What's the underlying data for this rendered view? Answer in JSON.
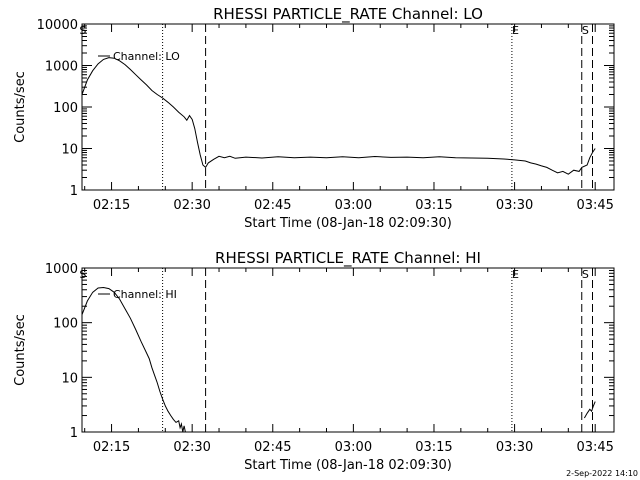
{
  "chart_data": [
    {
      "type": "line",
      "title": "RHESSI PARTICLE_RATE Channel: LO",
      "xlabel": "Start Time (08-Jan-18 02:09:30)",
      "ylabel": "Counts/sec",
      "x_ticks": [
        "02:15",
        "02:30",
        "02:45",
        "03:00",
        "03:15",
        "03:30",
        "03:45"
      ],
      "y_ticks": [
        "1",
        "10",
        "100",
        "1000",
        "10000"
      ],
      "y_scale": "log",
      "ylim": [
        1,
        10000
      ],
      "xlim": [
        "02:09:30",
        "03:48:30"
      ],
      "legend": "Channel: LO",
      "vlines": {
        "dotted": [
          "02:24:30",
          "03:29:30"
        ],
        "dashed": [
          "02:32:30",
          "03:42:30",
          "03:44:30"
        ]
      },
      "markers": [
        {
          "label": "S",
          "x": "02:09:40"
        },
        {
          "label": "E",
          "x": "03:30:10"
        },
        {
          "label": "S",
          "x": "03:43:10"
        }
      ],
      "series": [
        {
          "name": "Channel: LO",
          "segments": [
            [
              [
                "02:09:30",
                200
              ],
              [
                "02:10:30",
                450
              ],
              [
                "02:11:30",
                750
              ],
              [
                "02:12:30",
                1100
              ],
              [
                "02:13:30",
                1400
              ],
              [
                "02:14:30",
                1550
              ],
              [
                "02:15:30",
                1500
              ],
              [
                "02:16:30",
                1300
              ],
              [
                "02:17:30",
                1050
              ],
              [
                "02:18:30",
                800
              ],
              [
                "02:19:30",
                600
              ],
              [
                "02:20:30",
                450
              ],
              [
                "02:21:30",
                340
              ],
              [
                "02:22:30",
                250
              ],
              [
                "02:23:30",
                200
              ],
              [
                "02:24:30",
                165
              ],
              [
                "02:25:30",
                130
              ],
              [
                "02:26:30",
                100
              ],
              [
                "02:27:30",
                75
              ],
              [
                "02:28:30",
                58
              ],
              [
                "02:29:00",
                48
              ],
              [
                "02:29:30",
                62
              ],
              [
                "02:30:00",
                50
              ],
              [
                "02:30:30",
                30
              ],
              [
                "02:31:00",
                14
              ],
              [
                "02:31:30",
                7
              ],
              [
                "02:32:00",
                4
              ],
              [
                "02:32:30",
                3.5
              ],
              [
                "02:33:00",
                4.5
              ],
              [
                "02:34:00",
                5.5
              ],
              [
                "02:35:00",
                6.5
              ],
              [
                "02:36:00",
                6
              ],
              [
                "02:37:00",
                6.5
              ],
              [
                "02:38:00",
                5.8
              ],
              [
                "02:40:00",
                6.2
              ],
              [
                "02:43:00",
                5.9
              ],
              [
                "02:46:00",
                6.3
              ],
              [
                "02:49:00",
                6
              ],
              [
                "02:52:00",
                6.2
              ],
              [
                "02:55:00",
                6
              ],
              [
                "02:58:00",
                6.3
              ],
              [
                "03:01:00",
                6
              ],
              [
                "03:04:00",
                6.4
              ],
              [
                "03:07:00",
                6.1
              ],
              [
                "03:10:00",
                6.2
              ],
              [
                "03:13:00",
                6
              ],
              [
                "03:16:00",
                6.3
              ],
              [
                "03:19:00",
                6
              ],
              [
                "03:22:00",
                5.9
              ],
              [
                "03:25:00",
                5.8
              ],
              [
                "03:28:00",
                5.6
              ],
              [
                "03:30:00",
                5.3
              ],
              [
                "03:32:00",
                5
              ],
              [
                "03:33:00",
                4.5
              ],
              [
                "03:34:00",
                4.2
              ],
              [
                "03:35:00",
                3.8
              ],
              [
                "03:36:00",
                3.5
              ],
              [
                "03:37:00",
                3
              ],
              [
                "03:38:00",
                2.6
              ],
              [
                "03:39:00",
                2.8
              ],
              [
                "03:40:00",
                2.4
              ],
              [
                "03:41:00",
                3
              ],
              [
                "03:42:00",
                2.8
              ],
              [
                "03:42:30",
                3.5
              ],
              [
                "03:43:30",
                4
              ],
              [
                "03:44:00",
                6
              ],
              [
                "03:44:30",
                8
              ],
              [
                "03:45:00",
                10
              ]
            ]
          ]
        }
      ]
    },
    {
      "type": "line",
      "title": "RHESSI PARTICLE_RATE Channel: HI",
      "xlabel": "Start Time (08-Jan-18 02:09:30)",
      "ylabel": "Counts/sec",
      "x_ticks": [
        "02:15",
        "02:30",
        "02:45",
        "03:00",
        "03:15",
        "03:30",
        "03:45"
      ],
      "y_ticks": [
        "1",
        "10",
        "100",
        "1000"
      ],
      "y_scale": "log",
      "ylim": [
        1,
        1000
      ],
      "xlim": [
        "02:09:30",
        "03:48:30"
      ],
      "legend": "Channel: HI",
      "vlines": {
        "dotted": [
          "02:24:30",
          "03:29:30"
        ],
        "dashed": [
          "02:32:30",
          "03:42:30",
          "03:44:30"
        ]
      },
      "markers": [
        {
          "label": "S",
          "x": "02:09:40"
        },
        {
          "label": "E",
          "x": "03:30:10"
        },
        {
          "label": "S",
          "x": "03:43:10"
        }
      ],
      "series": [
        {
          "name": "Channel: HI",
          "segments": [
            [
              [
                "02:09:30",
                140
              ],
              [
                "02:10:30",
                250
              ],
              [
                "02:11:30",
                360
              ],
              [
                "02:12:30",
                430
              ],
              [
                "02:13:30",
                440
              ],
              [
                "02:14:30",
                420
              ],
              [
                "02:15:30",
                360
              ],
              [
                "02:16:30",
                270
              ],
              [
                "02:17:30",
                180
              ],
              [
                "02:18:30",
                120
              ],
              [
                "02:19:30",
                75
              ],
              [
                "02:20:30",
                45
              ],
              [
                "02:21:30",
                28
              ],
              [
                "02:22:00",
                22
              ],
              [
                "02:22:30",
                15
              ],
              [
                "02:23:00",
                11
              ],
              [
                "02:23:30",
                8
              ],
              [
                "02:24:00",
                5.5
              ],
              [
                "02:24:30",
                4
              ],
              [
                "02:25:00",
                3
              ],
              [
                "02:25:30",
                2.4
              ],
              [
                "02:26:00",
                2
              ],
              [
                "02:26:30",
                1.7
              ],
              [
                "02:27:00",
                1.5
              ],
              [
                "02:27:30",
                1.6
              ],
              [
                "02:27:45",
                1.2
              ],
              [
                "02:28:00",
                1.4
              ],
              [
                "02:28:15",
                1.0
              ],
              [
                "02:28:30",
                1.3
              ],
              [
                "02:28:45",
                1.0
              ]
            ],
            [
              [
                "03:43:00",
                1.8
              ],
              [
                "03:43:30",
                2.2
              ],
              [
                "03:44:00",
                2.6
              ],
              [
                "03:44:20",
                2.4
              ],
              [
                "03:44:40",
                3.0
              ],
              [
                "03:45:00",
                3.6
              ]
            ]
          ]
        }
      ]
    }
  ],
  "footer": {
    "timestamp": "2-Sep-2022 14:10"
  }
}
